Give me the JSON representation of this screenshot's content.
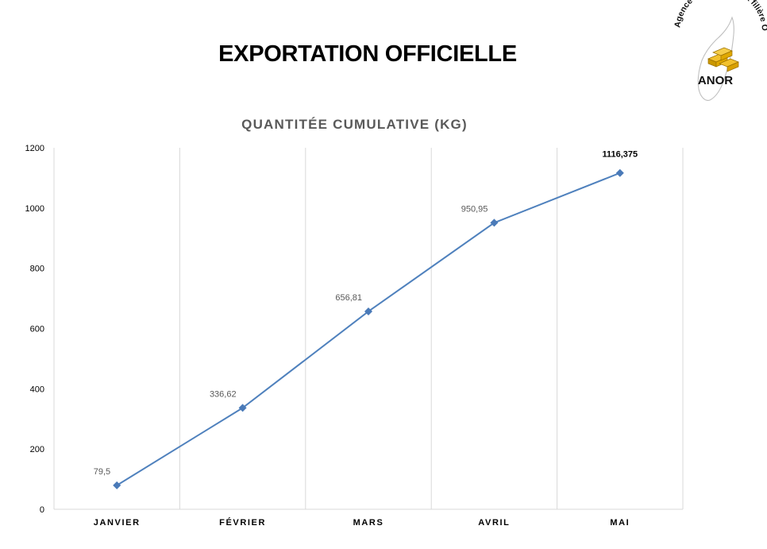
{
  "page": {
    "title": "EXPORTATION OFFICIELLE"
  },
  "logo": {
    "org_name": "Agence Nationale de la filière OR",
    "acronym": "ANOR"
  },
  "colors": {
    "series_line": "#4f81bd",
    "marker": "#4a7ab8",
    "grid": "#d9d9d9",
    "axis_text": "#000000",
    "label_text": "#595959",
    "gold": "#e0a800"
  },
  "chart_data": {
    "type": "line",
    "title": "QUANTITÉE CUMULATIVE  (KG)",
    "categories": [
      "JANVIER",
      "FÉVRIER",
      "MARS",
      "AVRIL",
      "MAI"
    ],
    "series": [
      {
        "values": [
          79.5,
          336.62,
          656.81,
          950.95,
          1116.375
        ],
        "labels": [
          "79,5",
          "336,62",
          "656,81",
          "950,95",
          "1116,375"
        ],
        "highlight_last_label": true
      }
    ],
    "ylim": [
      0,
      1200
    ],
    "yticks": [
      0,
      200,
      400,
      600,
      800,
      1000,
      1200
    ],
    "xlabel": "",
    "ylabel": "",
    "grid": "vertical",
    "legend": "none"
  }
}
